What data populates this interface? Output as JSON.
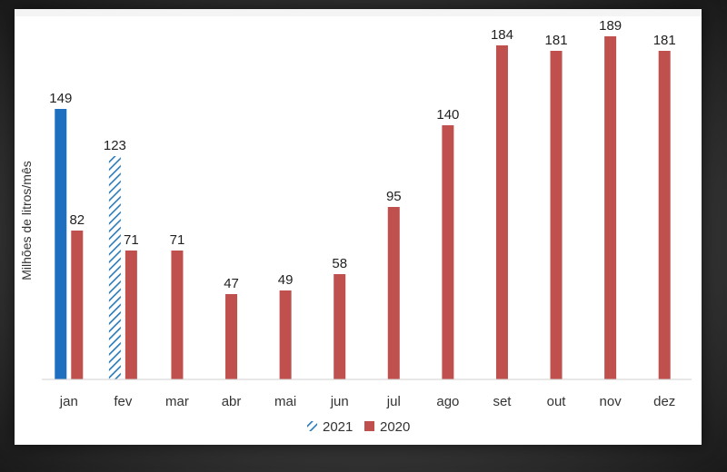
{
  "chart_data": {
    "type": "bar",
    "categories": [
      "jan",
      "fev",
      "mar",
      "abr",
      "mai",
      "jun",
      "jul",
      "ago",
      "set",
      "out",
      "nov",
      "dez"
    ],
    "series": [
      {
        "name": "2021",
        "values": [
          149,
          123,
          null,
          null,
          null,
          null,
          null,
          null,
          null,
          null,
          null,
          null
        ],
        "color": "#1f6fc0",
        "pattern": "hatch-after-first"
      },
      {
        "name": "2020",
        "values": [
          82,
          71,
          71,
          47,
          49,
          58,
          95,
          140,
          184,
          181,
          189,
          181
        ],
        "color": "#c0504d"
      }
    ],
    "ylabel": "Milhões de litros/mês",
    "ylim": [
      0,
      200
    ],
    "grid": false,
    "legend_position": "bottom"
  }
}
